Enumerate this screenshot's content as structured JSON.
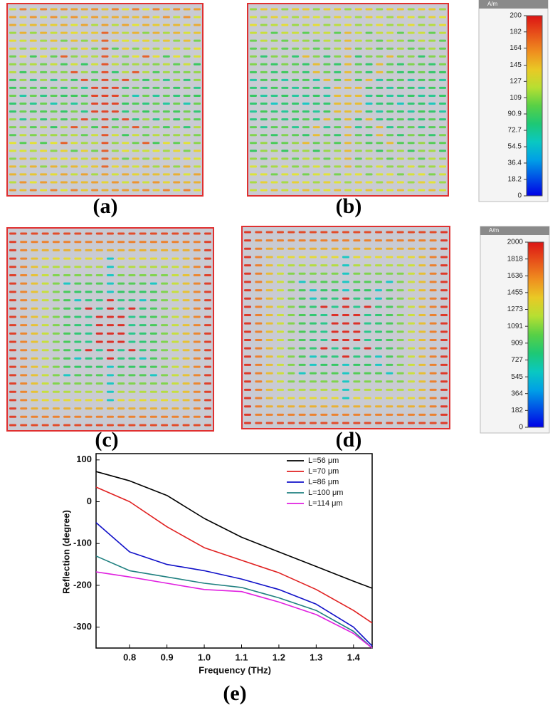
{
  "panels": [
    {
      "label": "(a)"
    },
    {
      "label": "(b)"
    },
    {
      "label": "(c)"
    },
    {
      "label": "(d)"
    }
  ],
  "colorbars": [
    {
      "unit": "A/m",
      "lim": [
        0,
        200
      ],
      "ticks": [
        200,
        182,
        164,
        145,
        127,
        109,
        90.9,
        72.7,
        54.5,
        36.4,
        18.2,
        0
      ]
    },
    {
      "unit": "A/m",
      "lim": [
        0,
        2000
      ],
      "ticks": [
        2000,
        1818,
        1636,
        1455,
        1273,
        1091,
        909,
        727,
        545,
        364,
        182,
        0
      ]
    }
  ],
  "chart_data": {
    "type": "line",
    "panel_label": "(e)",
    "x_label": "Frequency (THz)",
    "y_label": "Reflection (degree)",
    "x": [
      0.71,
      0.8,
      0.9,
      1.0,
      1.1,
      1.2,
      1.3,
      1.4,
      1.45
    ],
    "series": [
      {
        "name": "L=56 μm",
        "color": "#000000",
        "values": [
          72,
          50,
          15,
          -40,
          -85,
          -120,
          -155,
          -190,
          -207
        ]
      },
      {
        "name": "L=70 μm",
        "color": "#e02020",
        "values": [
          35,
          0,
          -60,
          -110,
          -140,
          -170,
          -210,
          -260,
          -290
        ]
      },
      {
        "name": "L=86 μm",
        "color": "#1010c8",
        "values": [
          -50,
          -120,
          -150,
          -165,
          -185,
          -210,
          -245,
          -300,
          -345
        ]
      },
      {
        "name": "L=100 μm",
        "color": "#1f8080",
        "values": [
          -130,
          -165,
          -180,
          -195,
          -205,
          -230,
          -260,
          -310,
          -350
        ]
      },
      {
        "name": "L=114 μm",
        "color": "#e020e0",
        "values": [
          -168,
          -180,
          -195,
          -210,
          -215,
          -240,
          -270,
          -315,
          -350
        ]
      }
    ],
    "xlim": [
      0.71,
      1.45
    ],
    "ylim": [
      -350,
      115
    ],
    "xticks": [
      0.8,
      0.9,
      {
        "value": 1,
        "label": "1.0"
      },
      1.1,
      1.2,
      1.3,
      1.4
    ],
    "yticks": [
      -300,
      -200,
      -100,
      0,
      100
    ],
    "legend": "top-right"
  }
}
